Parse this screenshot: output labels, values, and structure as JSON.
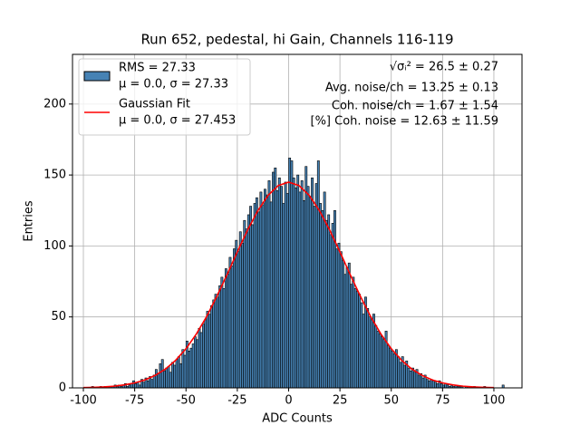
{
  "chart_data": {
    "type": "histogram",
    "title": "Run 652, pedestal, hi Gain, Channels 116-119",
    "x_label": "ADC Counts",
    "y_label": "Entries",
    "bins": [
      -96,
      -95,
      -94,
      -93,
      -92,
      -91,
      -90,
      -89,
      -88,
      -87,
      -86,
      -85,
      -84,
      -83,
      -82,
      -81,
      -80,
      -79,
      -78,
      -77,
      -76,
      -75,
      -74,
      -73,
      -72,
      -71,
      -70,
      -69,
      -68,
      -67,
      -66,
      -65,
      -64,
      -63,
      -62,
      -61,
      -60,
      -59,
      -58,
      -57,
      -56,
      -55,
      -54,
      -53,
      -52,
      -51,
      -50,
      -49,
      -48,
      -47,
      -46,
      -45,
      -44,
      -43,
      -42,
      -41,
      -40,
      -39,
      -38,
      -37,
      -36,
      -35,
      -34,
      -33,
      -32,
      -31,
      -30,
      -29,
      -28,
      -27,
      -26,
      -25,
      -24,
      -23,
      -22,
      -21,
      -20,
      -19,
      -18,
      -17,
      -16,
      -15,
      -14,
      -13,
      -12,
      -11,
      -10,
      -9,
      -8,
      -7,
      -6,
      -5,
      -4,
      -3,
      -2,
      -1,
      0,
      1,
      2,
      3,
      4,
      5,
      6,
      7,
      8,
      9,
      10,
      11,
      12,
      13,
      14,
      15,
      16,
      17,
      18,
      19,
      20,
      21,
      22,
      23,
      24,
      25,
      26,
      27,
      28,
      29,
      30,
      31,
      32,
      33,
      34,
      35,
      36,
      37,
      38,
      39,
      40,
      41,
      42,
      43,
      44,
      45,
      46,
      47,
      48,
      49,
      50,
      51,
      52,
      53,
      54,
      55,
      56,
      57,
      58,
      59,
      60,
      61,
      62,
      63,
      64,
      65,
      66,
      67,
      68,
      69,
      70,
      71,
      72,
      73,
      74,
      75,
      76,
      77,
      78,
      79,
      80,
      81,
      82,
      83,
      84,
      85,
      86,
      87,
      88,
      89,
      90,
      91,
      92,
      93,
      94,
      95,
      96,
      97,
      98,
      99,
      100,
      101,
      102,
      103,
      104,
      105
    ],
    "series": [
      {
        "name": "RMS = 27.33",
        "subname": "μ = 0.0, σ = 27.33",
        "color": "#4682b4",
        "edgecolor": "#000000",
        "values": [
          1,
          0,
          0,
          0,
          1,
          0,
          1,
          0,
          1,
          1,
          1,
          2,
          1,
          2,
          1,
          2,
          3,
          1,
          2,
          3,
          5,
          3,
          4,
          2,
          6,
          4,
          7,
          5,
          8,
          6,
          9,
          13,
          10,
          17,
          20,
          12,
          14,
          15,
          11,
          18,
          16,
          20,
          22,
          17,
          27,
          23,
          33,
          26,
          28,
          31,
          36,
          34,
          42,
          39,
          45,
          48,
          54,
          52,
          58,
          62,
          66,
          64,
          72,
          78,
          70,
          84,
          80,
          92,
          86,
          98,
          104,
          96,
          110,
          102,
          118,
          112,
          122,
          128,
          115,
          130,
          134,
          124,
          138,
          129,
          140,
          136,
          146,
          131,
          152,
          155,
          139,
          148,
          142,
          130,
          145,
          137,
          162,
          160,
          148,
          141,
          150,
          138,
          146,
          132,
          156,
          142,
          135,
          148,
          128,
          144,
          160,
          130,
          125,
          138,
          118,
          122,
          108,
          116,
          125,
          98,
          102,
          96,
          90,
          80,
          85,
          88,
          73,
          78,
          70,
          68,
          66,
          60,
          52,
          64,
          56,
          50,
          48,
          52,
          44,
          40,
          38,
          36,
          34,
          40,
          30,
          28,
          26,
          24,
          27,
          22,
          18,
          22,
          16,
          19,
          14,
          12,
          14,
          11,
          13,
          9,
          10,
          7,
          9,
          6,
          5,
          6,
          5,
          4,
          3,
          5,
          3,
          2,
          3,
          2,
          1,
          2,
          1,
          2,
          1,
          1,
          1,
          0,
          1,
          1,
          0,
          0,
          1,
          0,
          0,
          0,
          0,
          1,
          0,
          0,
          0,
          0,
          0,
          0,
          0,
          0,
          2
        ]
      },
      {
        "name": "Gaussian Fit",
        "subname": "μ = 0.0, σ = 27.453",
        "type": "line",
        "color": "#ff0000",
        "x": [
          -100,
          -95,
          -90,
          -85,
          -80,
          -75,
          -70,
          -65,
          -60,
          -55,
          -50,
          -45,
          -40,
          -35,
          -30,
          -25,
          -20,
          -15,
          -10,
          -5,
          0,
          5,
          10,
          15,
          20,
          25,
          30,
          35,
          40,
          45,
          50,
          55,
          60,
          65,
          70,
          75,
          80,
          85,
          90,
          95,
          100
        ],
        "values": [
          0.19,
          0.36,
          0.68,
          1.2,
          2.1,
          3.5,
          5.6,
          8.8,
          13.3,
          19.5,
          27.6,
          37.9,
          50.1,
          64.4,
          79.8,
          95.8,
          111.2,
          124.9,
          135.7,
          142.6,
          145,
          142.6,
          135.7,
          124.9,
          111.2,
          95.8,
          79.8,
          64.4,
          50.1,
          37.9,
          27.6,
          19.5,
          13.3,
          8.8,
          5.6,
          3.5,
          2.1,
          1.2,
          0.68,
          0.36,
          0.19
        ]
      }
    ],
    "annotations": [
      "√σᵢ² = 26.5 ± 0.27",
      "Avg. noise/ch = 13.25 ± 0.13",
      "Coh. noise/ch = 1.67 ± 1.54",
      "[%] Coh. noise = 12.63 ± 11.59"
    ],
    "xlim": [
      -105.3,
      113.7
    ],
    "xticks": [
      -100,
      -75,
      -50,
      -25,
      0,
      25,
      50,
      75,
      100
    ],
    "ylim": [
      0,
      235
    ],
    "yticks": [
      0,
      50,
      100,
      150,
      200
    ],
    "grid": true,
    "legend": "upper left"
  }
}
